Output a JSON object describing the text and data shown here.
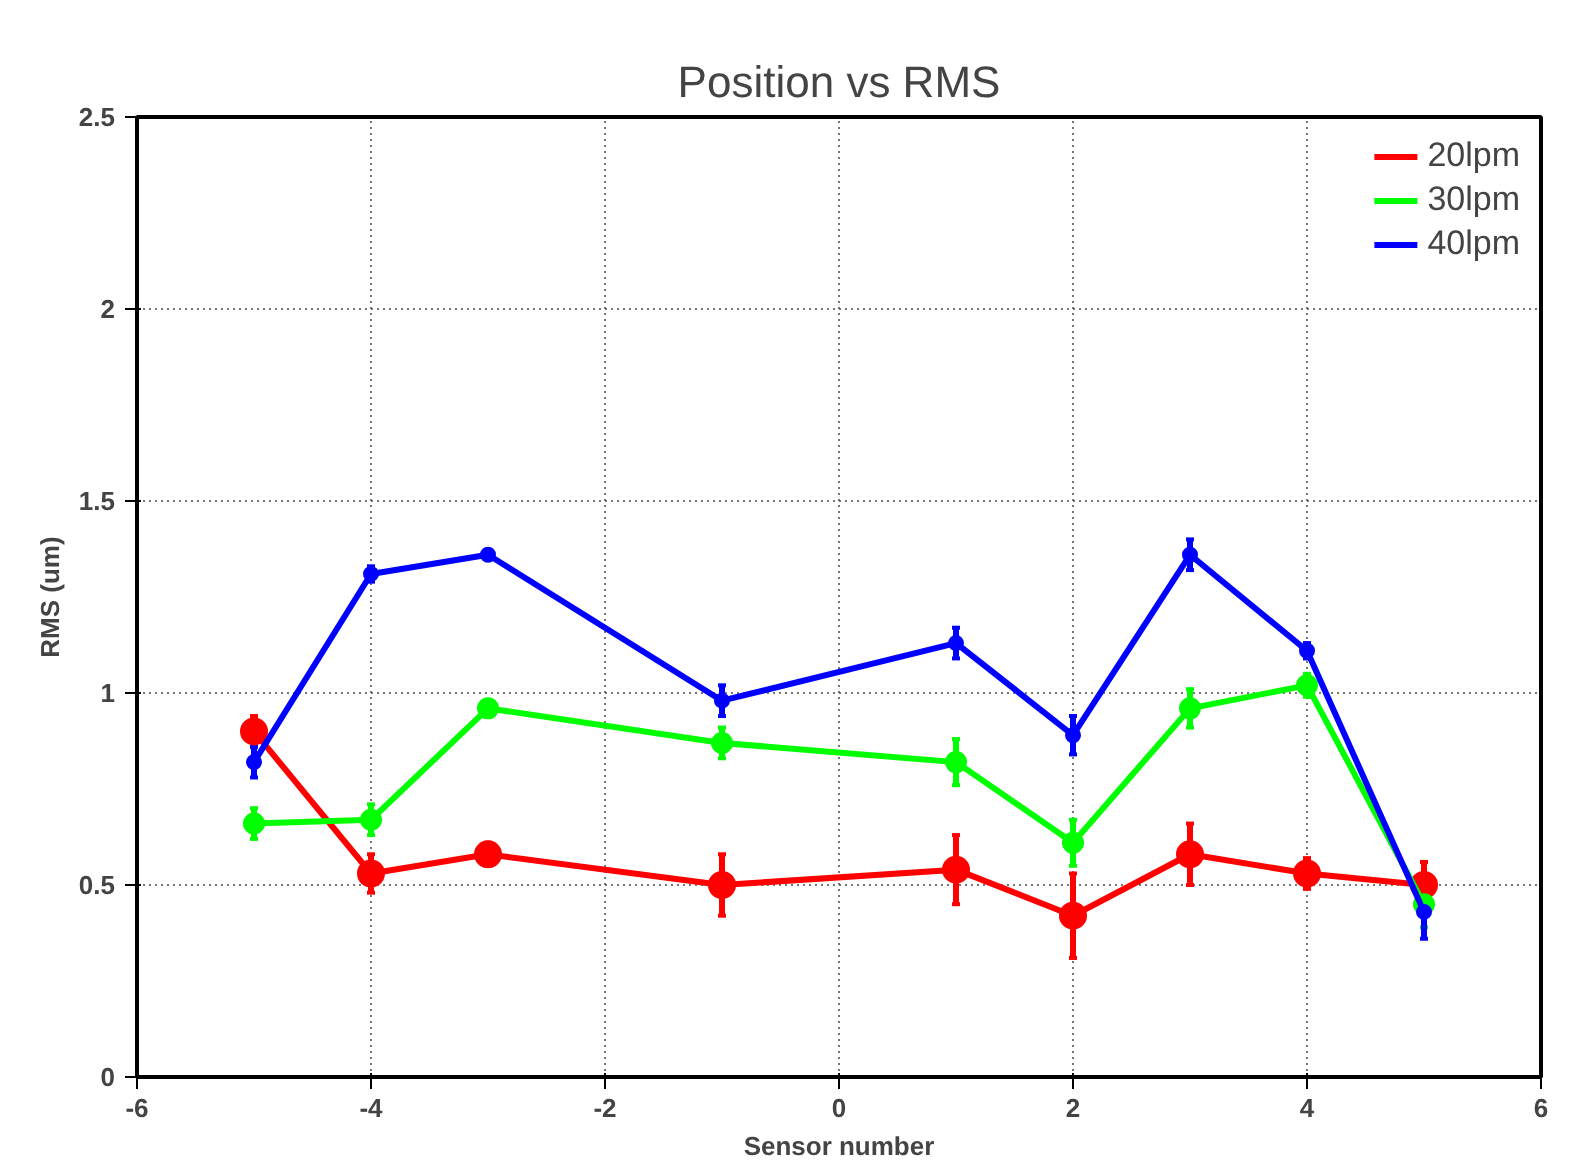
{
  "chart_data": {
    "type": "line",
    "title": "Position vs RMS",
    "xlabel": "Sensor number",
    "ylabel": "RMS (um)",
    "x": [
      -5,
      -4,
      -3,
      -1,
      1,
      2,
      3,
      4,
      5
    ],
    "series": [
      {
        "name": "20lpm",
        "color": "#ff0000",
        "values": [
          0.9,
          0.53,
          0.58,
          0.5,
          0.54,
          0.42,
          0.58,
          0.53,
          0.5
        ],
        "errors": [
          0.04,
          0.05,
          0.03,
          0.08,
          0.09,
          0.11,
          0.08,
          0.04,
          0.06
        ]
      },
      {
        "name": "30lpm",
        "color": "#00ff00",
        "values": [
          0.66,
          0.67,
          0.96,
          0.87,
          0.82,
          0.61,
          0.96,
          1.02,
          0.45
        ],
        "errors": [
          0.04,
          0.04,
          0.02,
          0.04,
          0.06,
          0.06,
          0.05,
          0.03,
          0.06
        ]
      },
      {
        "name": "40lpm",
        "color": "#0000ff",
        "values": [
          0.82,
          1.31,
          1.36,
          0.98,
          1.13,
          0.89,
          1.36,
          1.11,
          0.43
        ],
        "errors": [
          0.04,
          0.02,
          0.01,
          0.04,
          0.04,
          0.05,
          0.04,
          0.02,
          0.07
        ]
      }
    ],
    "xlim": [
      -6,
      6
    ],
    "xticks": [
      -6,
      -4,
      -2,
      0,
      2,
      4,
      6
    ],
    "ylim": [
      0,
      2.5
    ],
    "yticks": [
      0,
      0.5,
      1,
      1.5,
      2,
      2.5
    ],
    "grid": true,
    "legend": "top right",
    "marker": "circle",
    "line_style": "solid"
  }
}
